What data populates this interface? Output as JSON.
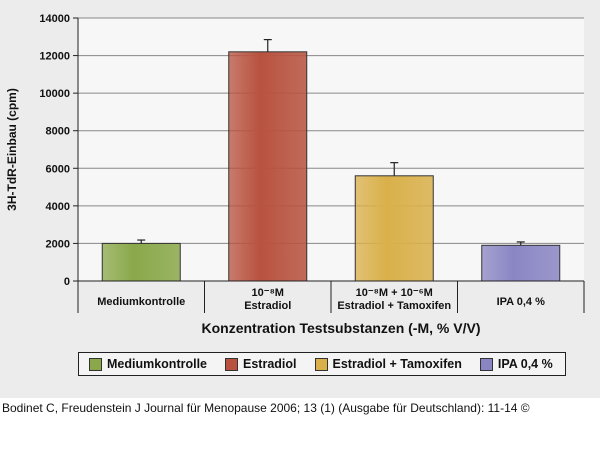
{
  "caption": "Bodinet C, Freudenstein J Journal für Menopause 2006; 13 (1) (Ausgabe für Deutschland): 11-14 ©",
  "chart_data": {
    "type": "bar",
    "ylabel": "3H-TdR-Einbau (cpm)",
    "xlabel": "Konzentration Testsubstanzen (-M, % V/V)",
    "ylim": [
      0,
      14000
    ],
    "yticks": [
      0,
      2000,
      4000,
      6000,
      8000,
      10000,
      12000,
      14000
    ],
    "grid": true,
    "legend_position": "bottom",
    "categories": [
      {
        "lines": [
          "Mediumkontrolle"
        ]
      },
      {
        "lines": [
          "10⁻⁸M",
          "Estradiol"
        ]
      },
      {
        "lines": [
          "10⁻⁸M + 10⁻⁶M",
          "Estradiol + Tamoxifen"
        ]
      },
      {
        "lines": [
          "IPA 0,4 %"
        ]
      }
    ],
    "series": [
      {
        "name": "Mediumkontrolle",
        "value": 2000,
        "error": 180,
        "color": "#8aa84a"
      },
      {
        "name": "Estradiol",
        "value": 12200,
        "error": 650,
        "color": "#b8523f"
      },
      {
        "name": "Estradiol + Tamoxifen",
        "value": 5600,
        "error": 700,
        "color": "#d9b04a"
      },
      {
        "name": "IPA 0,4 %",
        "value": 1900,
        "error": 180,
        "color": "#8a86c4"
      }
    ]
  }
}
